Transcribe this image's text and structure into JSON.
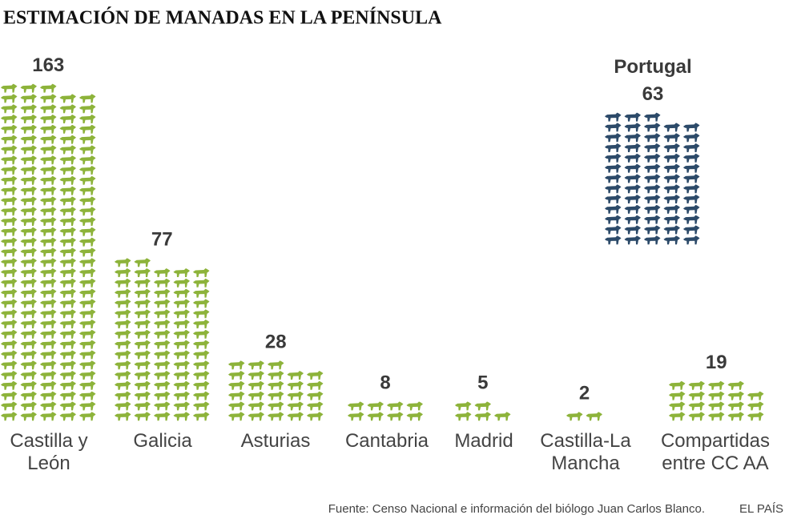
{
  "chart_data": {
    "type": "pictogram",
    "title": "ESTIMACIÓN DE MANADAS EN LA PENÍNSULA",
    "categories": [
      "Castilla y León",
      "Galicia",
      "Asturias",
      "Cantabria",
      "Madrid",
      "Castilla-La Mancha",
      "Compartidas entre CC AA"
    ],
    "values": [
      163,
      77,
      28,
      8,
      5,
      2,
      19
    ],
    "color": "#8db33a",
    "inset": {
      "label": "Portugal",
      "value": 63,
      "color": "#2c4a69"
    },
    "source": "Fuente: Censo Nacional e información del biólogo Juan Carlos Blanco.",
    "credit": "EL PAÍS"
  }
}
